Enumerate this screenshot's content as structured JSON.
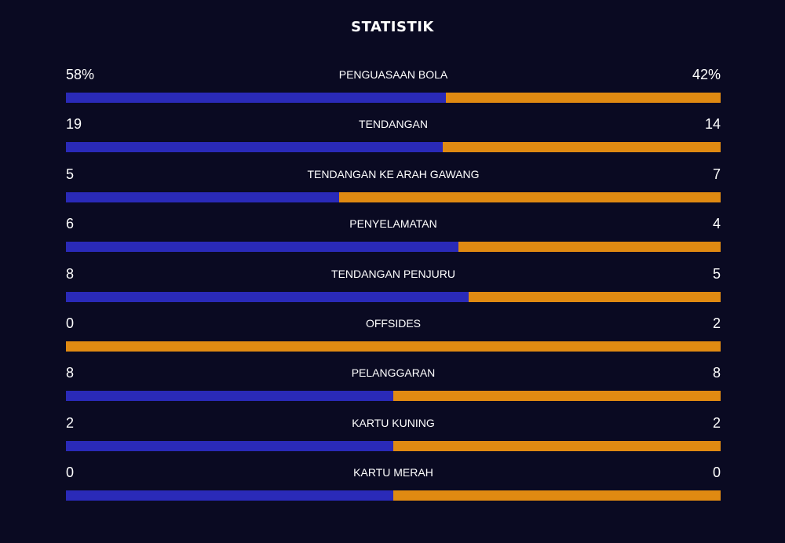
{
  "header": {
    "title": "STATISTIK"
  },
  "colors": {
    "background": "#0a0a22",
    "home": "#2a2ab8",
    "away": "#e08a12"
  },
  "stats": [
    {
      "label": "PENGUASAAN BOLA",
      "home": "58%",
      "away": "42%",
      "home_share": 0.58
    },
    {
      "label": "TENDANGAN",
      "home": "19",
      "away": "14",
      "home_share": 0.5758
    },
    {
      "label": "TENDANGAN KE ARAH GAWANG",
      "home": "5",
      "away": "7",
      "home_share": 0.4167
    },
    {
      "label": "PENYELAMATAN",
      "home": "6",
      "away": "4",
      "home_share": 0.6
    },
    {
      "label": "TENDANGAN PENJURU",
      "home": "8",
      "away": "5",
      "home_share": 0.6154
    },
    {
      "label": "OFFSIDES",
      "home": "0",
      "away": "2",
      "home_share": 0.0
    },
    {
      "label": "PELANGGARAN",
      "home": "8",
      "away": "8",
      "home_share": 0.5
    },
    {
      "label": "KARTU KUNING",
      "home": "2",
      "away": "2",
      "home_share": 0.5
    },
    {
      "label": "KARTU MERAH",
      "home": "0",
      "away": "0",
      "home_share": 0.5
    }
  ]
}
